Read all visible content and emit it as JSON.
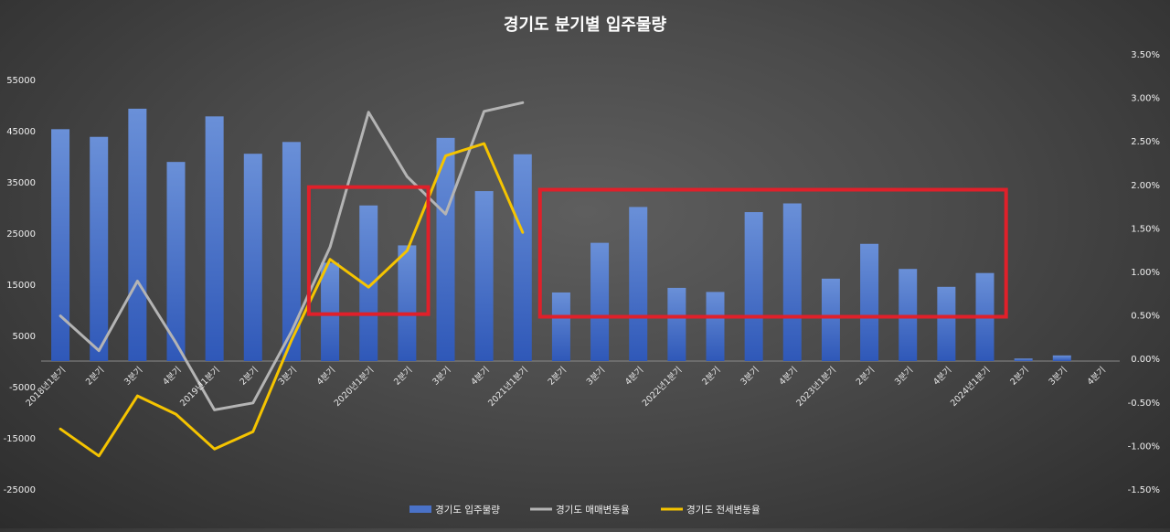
{
  "chart_data": {
    "type": "bar",
    "title": "경기도 분기별 입주물량",
    "xlabel": "",
    "ylabel": "",
    "ylim": [
      -25000,
      55000
    ],
    "y_ticks": [
      55000,
      45000,
      35000,
      25000,
      15000,
      5000,
      -5000,
      -15000,
      -25000
    ],
    "y2lim": [
      -1.5,
      3.5
    ],
    "y2_ticks": [
      "3.50%",
      "3.00%",
      "2.50%",
      "2.00%",
      "1.50%",
      "1.00%",
      "0.50%",
      "0.00%",
      "-0.50%",
      "-1.00%",
      "-1.50%"
    ],
    "y2_tick_values": [
      3.5,
      3.0,
      2.5,
      2.0,
      1.5,
      1.0,
      0.5,
      0.0,
      -0.5,
      -1.0,
      -1.5
    ],
    "categories": [
      "2018년1분기",
      "2분기",
      "3분기",
      "4분기",
      "2019년1분기",
      "2분기",
      "3분기",
      "4분기",
      "2020년1분기",
      "2분기",
      "3분기",
      "4분기",
      "2021년1분기",
      "2분기",
      "3분기",
      "4분기",
      "2022년1분기",
      "2분기",
      "3분기",
      "4분기",
      "2023년1분기",
      "2분기",
      "3분기",
      "4분기",
      "2024년1분기",
      "2분기",
      "3분기",
      "4분기"
    ],
    "series": [
      {
        "name": "경기도 입주물량",
        "kind": "bar",
        "axis": "left",
        "color": "#4a72c8",
        "values": [
          45300,
          43800,
          49300,
          38900,
          47800,
          40500,
          42800,
          19200,
          30400,
          22600,
          43600,
          33200,
          40400,
          13400,
          23100,
          30100,
          14300,
          13500,
          29100,
          30800,
          16100,
          22900,
          18000,
          14500,
          17200,
          500,
          1100,
          null
        ]
      },
      {
        "name": "경기도 매매변동율",
        "kind": "line",
        "axis": "right",
        "color": "#b4b4b4",
        "values": [
          0.49,
          0.09,
          0.89,
          0.18,
          -0.59,
          -0.51,
          0.31,
          1.28,
          2.83,
          2.09,
          1.66,
          2.84,
          2.94,
          null,
          null,
          null,
          null,
          null,
          null,
          null,
          null,
          null,
          null,
          null,
          null,
          null,
          null,
          null
        ]
      },
      {
        "name": "경기도 전세변동율",
        "kind": "line",
        "axis": "right",
        "color": "#f5c400",
        "values": [
          -0.81,
          -1.12,
          -0.43,
          -0.64,
          -1.04,
          -0.84,
          0.21,
          1.14,
          0.82,
          1.24,
          2.33,
          2.47,
          1.45,
          null,
          null,
          null,
          null,
          null,
          null,
          null,
          null,
          null,
          null,
          null,
          null,
          null,
          null,
          null
        ]
      }
    ],
    "annotations": [
      {
        "type": "highlight-box",
        "color": "#e0202a",
        "from_category": "4분기",
        "from_index": 7,
        "to_index": 9,
        "y2_top": 1.97,
        "y2_bottom": 0.51
      },
      {
        "type": "highlight-box",
        "color": "#e0202a",
        "from_index": 13,
        "to_index": 24,
        "y2_top": 1.94,
        "y2_bottom": 0.48
      }
    ],
    "legend": {
      "position": "bottom-center",
      "items": [
        "경기도 입주물량",
        "경기도 매매변동율",
        "경기도 전세변동율"
      ]
    },
    "grid": false
  }
}
